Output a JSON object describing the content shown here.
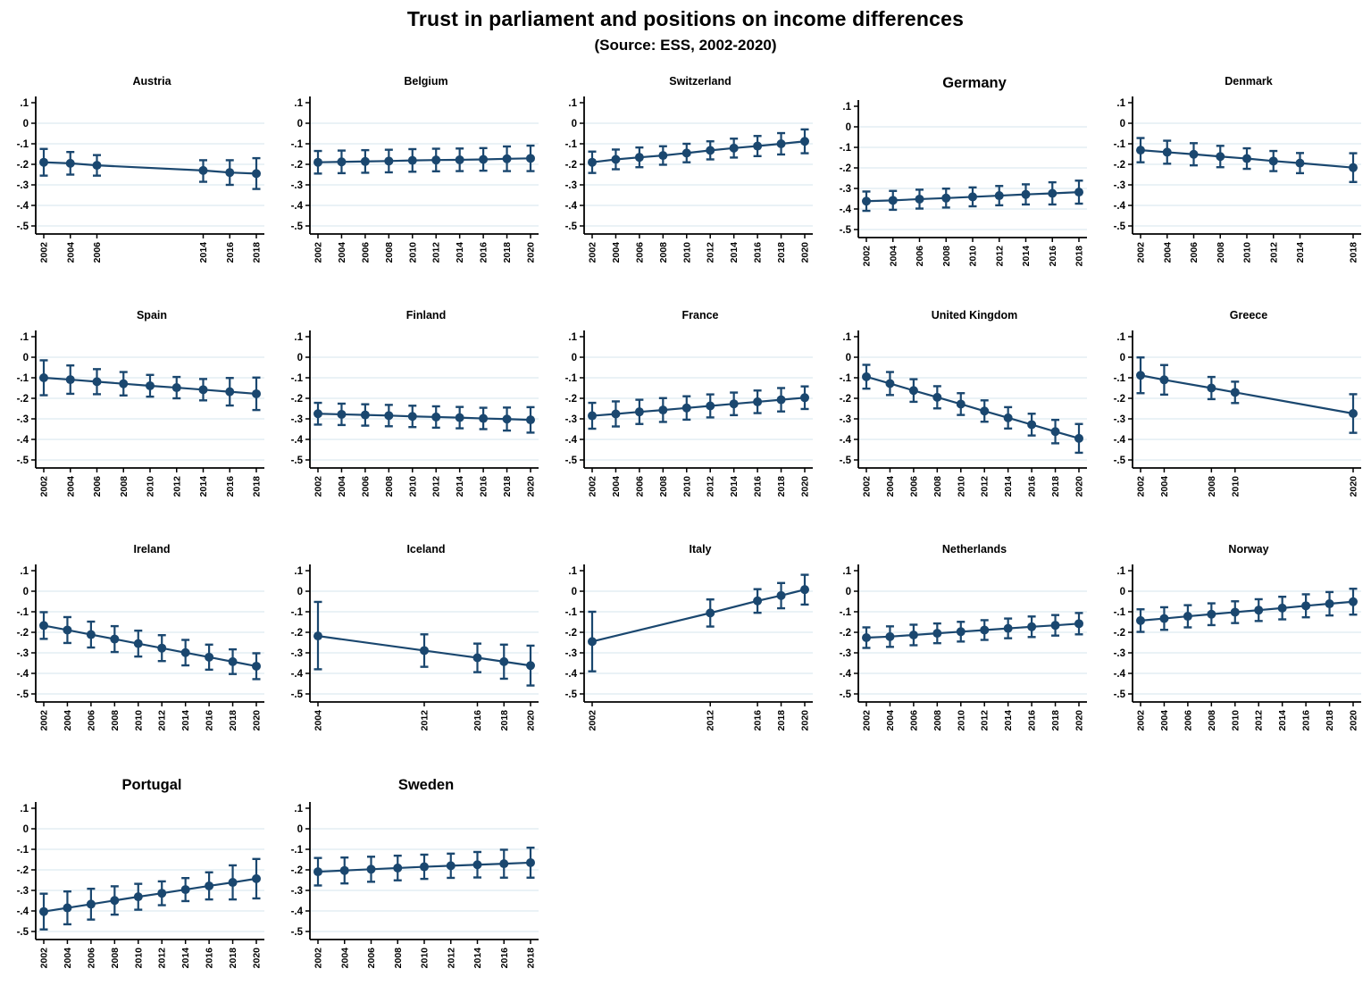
{
  "header": {
    "title": "Trust in parliament and positions on income differences",
    "subtitle": "(Source: ESS, 2002-2020)"
  },
  "chart_data": {
    "type": "line",
    "error_bars": true,
    "title": "Trust in parliament and positions on income differences",
    "subtitle": "(Source: ESS, 2002-2020)",
    "xlabel": "",
    "ylabel": "",
    "ylim": [
      -0.5,
      0.1
    ],
    "yticks": [
      ".1",
      "0",
      "-.1",
      "-.2",
      "-.3",
      "-.4",
      "-.5"
    ],
    "ytick_values": [
      0.1,
      0,
      -0.1,
      -0.2,
      -0.3,
      -0.4,
      -0.5
    ],
    "grid": "horizontal",
    "marker_color": "#1a476f",
    "grid_color": "#e4eef4",
    "axis_color": "#000000",
    "panels": [
      {
        "country": "Austria",
        "title_size": "normal",
        "years": [
          2002,
          2004,
          2006,
          2014,
          2016,
          2018
        ],
        "values": [
          -0.19,
          -0.195,
          -0.205,
          -0.23,
          -0.24,
          -0.245
        ],
        "ci_high": [
          -0.125,
          -0.14,
          -0.155,
          -0.18,
          -0.18,
          -0.17
        ],
        "ci_low": [
          -0.255,
          -0.25,
          -0.255,
          -0.285,
          -0.3,
          -0.32
        ]
      },
      {
        "country": "Belgium",
        "title_size": "normal",
        "years": [
          2002,
          2004,
          2006,
          2008,
          2010,
          2012,
          2014,
          2016,
          2018,
          2020
        ],
        "values": [
          -0.19,
          -0.188,
          -0.186,
          -0.184,
          -0.181,
          -0.179,
          -0.178,
          -0.176,
          -0.173,
          -0.171
        ],
        "ci_high": [
          -0.135,
          -0.133,
          -0.131,
          -0.129,
          -0.126,
          -0.124,
          -0.123,
          -0.121,
          -0.113,
          -0.109
        ],
        "ci_low": [
          -0.245,
          -0.243,
          -0.241,
          -0.239,
          -0.236,
          -0.234,
          -0.233,
          -0.231,
          -0.233,
          -0.233
        ]
      },
      {
        "country": "Switzerland",
        "title_size": "normal",
        "years": [
          2002,
          2004,
          2006,
          2008,
          2010,
          2012,
          2014,
          2016,
          2018,
          2020
        ],
        "values": [
          -0.19,
          -0.176,
          -0.166,
          -0.157,
          -0.145,
          -0.132,
          -0.121,
          -0.111,
          -0.1,
          -0.088
        ],
        "ci_high": [
          -0.138,
          -0.128,
          -0.118,
          -0.112,
          -0.1,
          -0.088,
          -0.075,
          -0.062,
          -0.048,
          -0.03
        ],
        "ci_low": [
          -0.242,
          -0.224,
          -0.214,
          -0.202,
          -0.19,
          -0.176,
          -0.167,
          -0.16,
          -0.152,
          -0.146
        ]
      },
      {
        "country": "Germany",
        "title_size": "large",
        "years": [
          2002,
          2004,
          2006,
          2008,
          2010,
          2012,
          2014,
          2016,
          2018
        ],
        "values": [
          -0.362,
          -0.358,
          -0.352,
          -0.347,
          -0.341,
          -0.335,
          -0.329,
          -0.324,
          -0.318
        ],
        "ci_high": [
          -0.315,
          -0.312,
          -0.306,
          -0.301,
          -0.295,
          -0.288,
          -0.28,
          -0.27,
          -0.262
        ],
        "ci_low": [
          -0.409,
          -0.404,
          -0.398,
          -0.393,
          -0.387,
          -0.382,
          -0.378,
          -0.378,
          -0.374
        ]
      },
      {
        "country": "Denmark",
        "title_size": "normal",
        "years": [
          2002,
          2004,
          2006,
          2008,
          2010,
          2012,
          2014,
          2018
        ],
        "values": [
          -0.131,
          -0.141,
          -0.151,
          -0.162,
          -0.172,
          -0.184,
          -0.194,
          -0.216
        ],
        "ci_high": [
          -0.072,
          -0.085,
          -0.097,
          -0.11,
          -0.122,
          -0.135,
          -0.145,
          -0.146
        ],
        "ci_low": [
          -0.19,
          -0.197,
          -0.205,
          -0.214,
          -0.222,
          -0.233,
          -0.243,
          -0.286
        ]
      },
      {
        "country": "Spain",
        "title_size": "normal",
        "years": [
          2002,
          2004,
          2006,
          2008,
          2010,
          2012,
          2014,
          2016,
          2018
        ],
        "values": [
          -0.1,
          -0.109,
          -0.119,
          -0.129,
          -0.139,
          -0.148,
          -0.158,
          -0.168,
          -0.178
        ],
        "ci_high": [
          -0.015,
          -0.04,
          -0.058,
          -0.072,
          -0.086,
          -0.096,
          -0.106,
          -0.101,
          -0.099
        ],
        "ci_low": [
          -0.185,
          -0.178,
          -0.18,
          -0.186,
          -0.192,
          -0.2,
          -0.21,
          -0.235,
          -0.257
        ]
      },
      {
        "country": "Finland",
        "title_size": "normal",
        "years": [
          2002,
          2004,
          2006,
          2008,
          2010,
          2012,
          2014,
          2016,
          2018,
          2020
        ],
        "values": [
          -0.275,
          -0.278,
          -0.281,
          -0.284,
          -0.288,
          -0.291,
          -0.294,
          -0.298,
          -0.301,
          -0.305
        ],
        "ci_high": [
          -0.222,
          -0.226,
          -0.229,
          -0.232,
          -0.236,
          -0.239,
          -0.242,
          -0.246,
          -0.245,
          -0.243
        ],
        "ci_low": [
          -0.328,
          -0.33,
          -0.333,
          -0.336,
          -0.34,
          -0.343,
          -0.346,
          -0.35,
          -0.357,
          -0.367
        ]
      },
      {
        "country": "France",
        "title_size": "normal",
        "years": [
          2002,
          2004,
          2006,
          2008,
          2010,
          2012,
          2014,
          2016,
          2018,
          2020
        ],
        "values": [
          -0.285,
          -0.276,
          -0.266,
          -0.257,
          -0.247,
          -0.237,
          -0.227,
          -0.217,
          -0.207,
          -0.197
        ],
        "ci_high": [
          -0.222,
          -0.215,
          -0.207,
          -0.199,
          -0.19,
          -0.181,
          -0.172,
          -0.162,
          -0.15,
          -0.142
        ],
        "ci_low": [
          -0.348,
          -0.337,
          -0.325,
          -0.315,
          -0.304,
          -0.293,
          -0.282,
          -0.272,
          -0.264,
          -0.252
        ]
      },
      {
        "country": "United Kingdom",
        "title_size": "normal",
        "years": [
          2002,
          2004,
          2006,
          2008,
          2010,
          2012,
          2014,
          2016,
          2018,
          2020
        ],
        "values": [
          -0.095,
          -0.128,
          -0.162,
          -0.195,
          -0.228,
          -0.262,
          -0.295,
          -0.328,
          -0.362,
          -0.395
        ],
        "ci_high": [
          -0.037,
          -0.072,
          -0.107,
          -0.141,
          -0.175,
          -0.21,
          -0.243,
          -0.275,
          -0.305,
          -0.325
        ],
        "ci_low": [
          -0.153,
          -0.184,
          -0.217,
          -0.249,
          -0.281,
          -0.314,
          -0.347,
          -0.381,
          -0.419,
          -0.465
        ]
      },
      {
        "country": "Greece",
        "title_size": "normal",
        "years": [
          2002,
          2004,
          2008,
          2010,
          2020
        ],
        "values": [
          -0.088,
          -0.11,
          -0.15,
          -0.171,
          -0.274
        ],
        "ci_high": [
          -0.001,
          -0.038,
          -0.096,
          -0.119,
          -0.18
        ],
        "ci_low": [
          -0.175,
          -0.182,
          -0.204,
          -0.223,
          -0.368
        ]
      },
      {
        "country": "Ireland",
        "title_size": "normal",
        "years": [
          2002,
          2004,
          2006,
          2008,
          2010,
          2012,
          2014,
          2016,
          2018,
          2020
        ],
        "values": [
          -0.167,
          -0.189,
          -0.211,
          -0.233,
          -0.255,
          -0.277,
          -0.299,
          -0.321,
          -0.343,
          -0.365
        ],
        "ci_high": [
          -0.102,
          -0.126,
          -0.148,
          -0.17,
          -0.192,
          -0.214,
          -0.237,
          -0.26,
          -0.283,
          -0.302
        ],
        "ci_low": [
          -0.232,
          -0.252,
          -0.274,
          -0.296,
          -0.318,
          -0.34,
          -0.361,
          -0.382,
          -0.403,
          -0.428
        ]
      },
      {
        "country": "Iceland",
        "title_size": "normal",
        "years": [
          2004,
          2012,
          2016,
          2018,
          2020
        ],
        "values": [
          -0.218,
          -0.289,
          -0.324,
          -0.343,
          -0.362
        ],
        "ci_high": [
          -0.052,
          -0.21,
          -0.255,
          -0.26,
          -0.265
        ],
        "ci_low": [
          -0.38,
          -0.368,
          -0.394,
          -0.426,
          -0.459
        ]
      },
      {
        "country": "Italy",
        "title_size": "normal",
        "years": [
          2002,
          2012,
          2016,
          2018,
          2020
        ],
        "values": [
          -0.245,
          -0.106,
          -0.047,
          -0.021,
          0.008
        ],
        "ci_high": [
          -0.1,
          -0.04,
          0.01,
          0.04,
          0.08
        ],
        "ci_low": [
          -0.39,
          -0.172,
          -0.105,
          -0.083,
          -0.065
        ]
      },
      {
        "country": "Netherlands",
        "title_size": "normal",
        "years": [
          2002,
          2004,
          2006,
          2008,
          2010,
          2012,
          2014,
          2016,
          2018,
          2020
        ],
        "values": [
          -0.226,
          -0.221,
          -0.213,
          -0.205,
          -0.197,
          -0.189,
          -0.181,
          -0.173,
          -0.166,
          -0.158
        ],
        "ci_high": [
          -0.176,
          -0.171,
          -0.163,
          -0.157,
          -0.149,
          -0.141,
          -0.133,
          -0.123,
          -0.116,
          -0.106
        ],
        "ci_low": [
          -0.276,
          -0.271,
          -0.263,
          -0.253,
          -0.245,
          -0.237,
          -0.229,
          -0.223,
          -0.216,
          -0.21
        ]
      },
      {
        "country": "Norway",
        "title_size": "normal",
        "years": [
          2002,
          2004,
          2006,
          2008,
          2010,
          2012,
          2014,
          2016,
          2018,
          2020
        ],
        "values": [
          -0.143,
          -0.133,
          -0.122,
          -0.112,
          -0.102,
          -0.092,
          -0.082,
          -0.071,
          -0.061,
          -0.051
        ],
        "ci_high": [
          -0.088,
          -0.078,
          -0.068,
          -0.059,
          -0.049,
          -0.039,
          -0.027,
          -0.015,
          -0.004,
          0.012
        ],
        "ci_low": [
          -0.198,
          -0.188,
          -0.176,
          -0.165,
          -0.155,
          -0.145,
          -0.137,
          -0.127,
          -0.118,
          -0.114
        ]
      },
      {
        "country": "Portugal",
        "title_size": "large",
        "years": [
          2002,
          2004,
          2006,
          2008,
          2010,
          2012,
          2014,
          2016,
          2018,
          2020
        ],
        "values": [
          -0.403,
          -0.385,
          -0.367,
          -0.349,
          -0.331,
          -0.314,
          -0.296,
          -0.278,
          -0.261,
          -0.243
        ],
        "ci_high": [
          -0.316,
          -0.305,
          -0.292,
          -0.28,
          -0.268,
          -0.256,
          -0.24,
          -0.212,
          -0.178,
          -0.147
        ],
        "ci_low": [
          -0.49,
          -0.465,
          -0.442,
          -0.418,
          -0.394,
          -0.372,
          -0.352,
          -0.344,
          -0.344,
          -0.339
        ]
      },
      {
        "country": "Sweden",
        "title_size": "large",
        "years": [
          2002,
          2004,
          2006,
          2008,
          2010,
          2012,
          2014,
          2016,
          2018
        ],
        "values": [
          -0.209,
          -0.203,
          -0.197,
          -0.191,
          -0.185,
          -0.18,
          -0.175,
          -0.17,
          -0.165
        ],
        "ci_high": [
          -0.142,
          -0.14,
          -0.136,
          -0.131,
          -0.126,
          -0.121,
          -0.113,
          -0.102,
          -0.092
        ],
        "ci_low": [
          -0.276,
          -0.266,
          -0.258,
          -0.251,
          -0.244,
          -0.239,
          -0.237,
          -0.238,
          -0.238
        ]
      }
    ]
  }
}
